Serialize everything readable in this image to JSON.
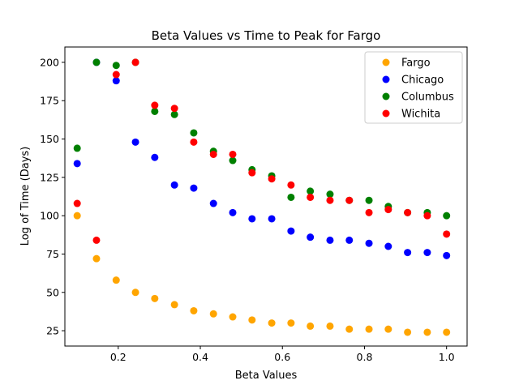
{
  "chart_data": {
    "type": "scatter",
    "title": "Beta Values vs Time to Peak for Fargo",
    "xlabel": "Beta Values",
    "ylabel": "Log of Time (Days)",
    "xlim": [
      0.07,
      1.05
    ],
    "ylim": [
      15,
      210
    ],
    "xticks": [
      0.2,
      0.4,
      0.6,
      0.8,
      1.0
    ],
    "xtick_labels": [
      "0.2",
      "0.4",
      "0.6",
      "0.8",
      "1.0"
    ],
    "yticks": [
      25,
      50,
      75,
      100,
      125,
      150,
      175,
      200
    ],
    "ytick_labels": [
      "25",
      "50",
      "75",
      "100",
      "125",
      "150",
      "175",
      "200"
    ],
    "grid": false,
    "legend_position": "top-right",
    "x": [
      0.1,
      0.147,
      0.195,
      0.242,
      0.289,
      0.337,
      0.384,
      0.432,
      0.479,
      0.526,
      0.574,
      0.621,
      0.668,
      0.716,
      0.763,
      0.811,
      0.858,
      0.905,
      0.953,
      1.0
    ],
    "series": [
      {
        "name": "Fargo",
        "color": "#ffa500",
        "values": [
          100,
          72,
          58,
          50,
          46,
          42,
          38,
          36,
          34,
          32,
          30,
          30,
          28,
          28,
          26,
          26,
          26,
          24,
          24,
          24
        ]
      },
      {
        "name": "Chicago",
        "color": "#0000ff",
        "values": [
          134,
          200,
          188,
          148,
          138,
          120,
          118,
          108,
          102,
          98,
          98,
          90,
          86,
          84,
          84,
          82,
          80,
          76,
          76,
          74
        ]
      },
      {
        "name": "Columbus",
        "color": "#008000",
        "values": [
          144,
          200,
          198,
          200,
          168,
          166,
          154,
          142,
          136,
          130,
          126,
          112,
          116,
          114,
          110,
          110,
          106,
          102,
          102,
          100
        ]
      },
      {
        "name": "Wichita",
        "color": "#ff0000",
        "values": [
          108,
          84,
          192,
          200,
          172,
          170,
          148,
          140,
          140,
          128,
          124,
          120,
          112,
          110,
          110,
          102,
          104,
          102,
          100,
          88
        ]
      }
    ]
  }
}
